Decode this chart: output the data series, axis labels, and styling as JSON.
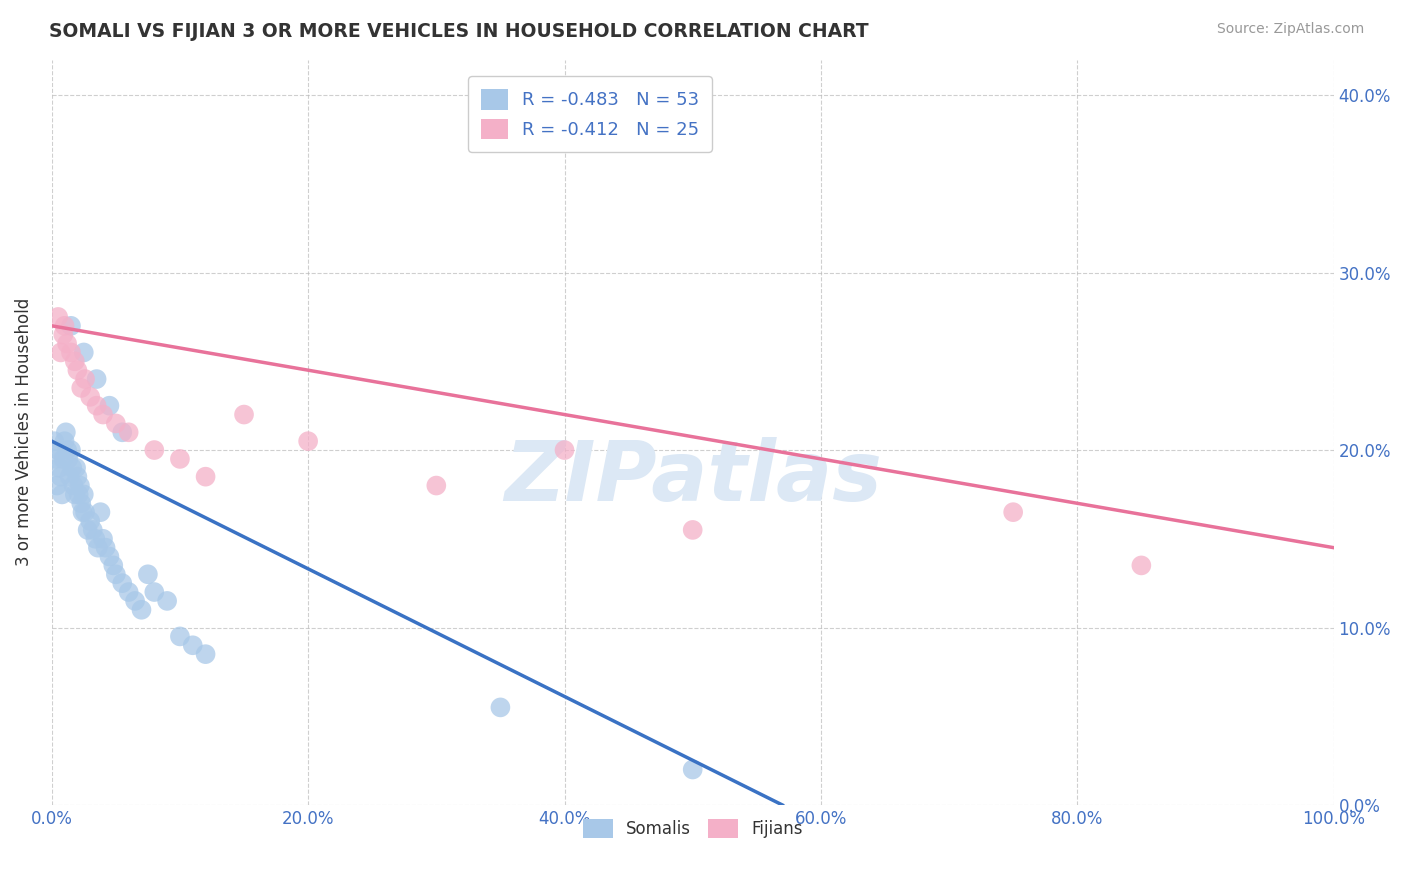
{
  "title": "SOMALI VS FIJIAN 3 OR MORE VEHICLES IN HOUSEHOLD CORRELATION CHART",
  "source": "Source: ZipAtlas.com",
  "ylabel": "3 or more Vehicles in Household",
  "yticks": [
    0.0,
    10.0,
    20.0,
    30.0,
    40.0
  ],
  "xticks": [
    0.0,
    20.0,
    40.0,
    60.0,
    80.0,
    100.0
  ],
  "xlim": [
    0,
    100
  ],
  "ylim": [
    0,
    42
  ],
  "somali_R": -0.483,
  "somali_N": 53,
  "fijian_R": -0.412,
  "fijian_N": 25,
  "somali_color": "#a8c8e8",
  "fijian_color": "#f4b0c8",
  "somali_line_color": "#3a72c4",
  "fijian_line_color": "#e8729a",
  "background_color": "#ffffff",
  "grid_color": "#bbbbbb",
  "watermark": "ZIPatlas",
  "watermark_color": "#dce8f5",
  "tick_color": "#4472c4",
  "somali_x": [
    0.2,
    0.3,
    0.4,
    0.5,
    0.6,
    0.7,
    0.8,
    0.9,
    1.0,
    1.1,
    1.2,
    1.3,
    1.4,
    1.5,
    1.6,
    1.7,
    1.8,
    1.9,
    2.0,
    2.1,
    2.2,
    2.3,
    2.4,
    2.5,
    2.6,
    2.8,
    3.0,
    3.2,
    3.4,
    3.6,
    3.8,
    4.0,
    4.2,
    4.5,
    4.8,
    5.0,
    5.5,
    6.0,
    6.5,
    7.0,
    7.5,
    8.0,
    9.0,
    10.0,
    11.0,
    12.0,
    1.5,
    2.5,
    3.5,
    4.5,
    5.5,
    35.0,
    50.0
  ],
  "somali_y": [
    20.5,
    19.5,
    18.0,
    20.0,
    19.0,
    18.5,
    17.5,
    19.5,
    20.5,
    21.0,
    20.0,
    19.5,
    18.5,
    20.0,
    19.0,
    18.0,
    17.5,
    19.0,
    18.5,
    17.5,
    18.0,
    17.0,
    16.5,
    17.5,
    16.5,
    15.5,
    16.0,
    15.5,
    15.0,
    14.5,
    16.5,
    15.0,
    14.5,
    14.0,
    13.5,
    13.0,
    12.5,
    12.0,
    11.5,
    11.0,
    13.0,
    12.0,
    11.5,
    9.5,
    9.0,
    8.5,
    27.0,
    25.5,
    24.0,
    22.5,
    21.0,
    5.5,
    2.0
  ],
  "fijian_x": [
    0.5,
    0.7,
    0.9,
    1.0,
    1.2,
    1.5,
    1.8,
    2.0,
    2.3,
    2.6,
    3.0,
    3.5,
    4.0,
    5.0,
    6.0,
    8.0,
    10.0,
    12.0,
    15.0,
    20.0,
    30.0,
    40.0,
    50.0,
    75.0,
    85.0
  ],
  "fijian_y": [
    27.5,
    25.5,
    26.5,
    27.0,
    26.0,
    25.5,
    25.0,
    24.5,
    23.5,
    24.0,
    23.0,
    22.5,
    22.0,
    21.5,
    21.0,
    20.0,
    19.5,
    18.5,
    22.0,
    20.5,
    18.0,
    20.0,
    15.5,
    16.5,
    13.5
  ],
  "somali_line_x": [
    0,
    57
  ],
  "somali_line_y": [
    20.5,
    0.0
  ],
  "fijian_line_x": [
    0,
    100
  ],
  "fijian_line_y": [
    27.0,
    14.5
  ]
}
